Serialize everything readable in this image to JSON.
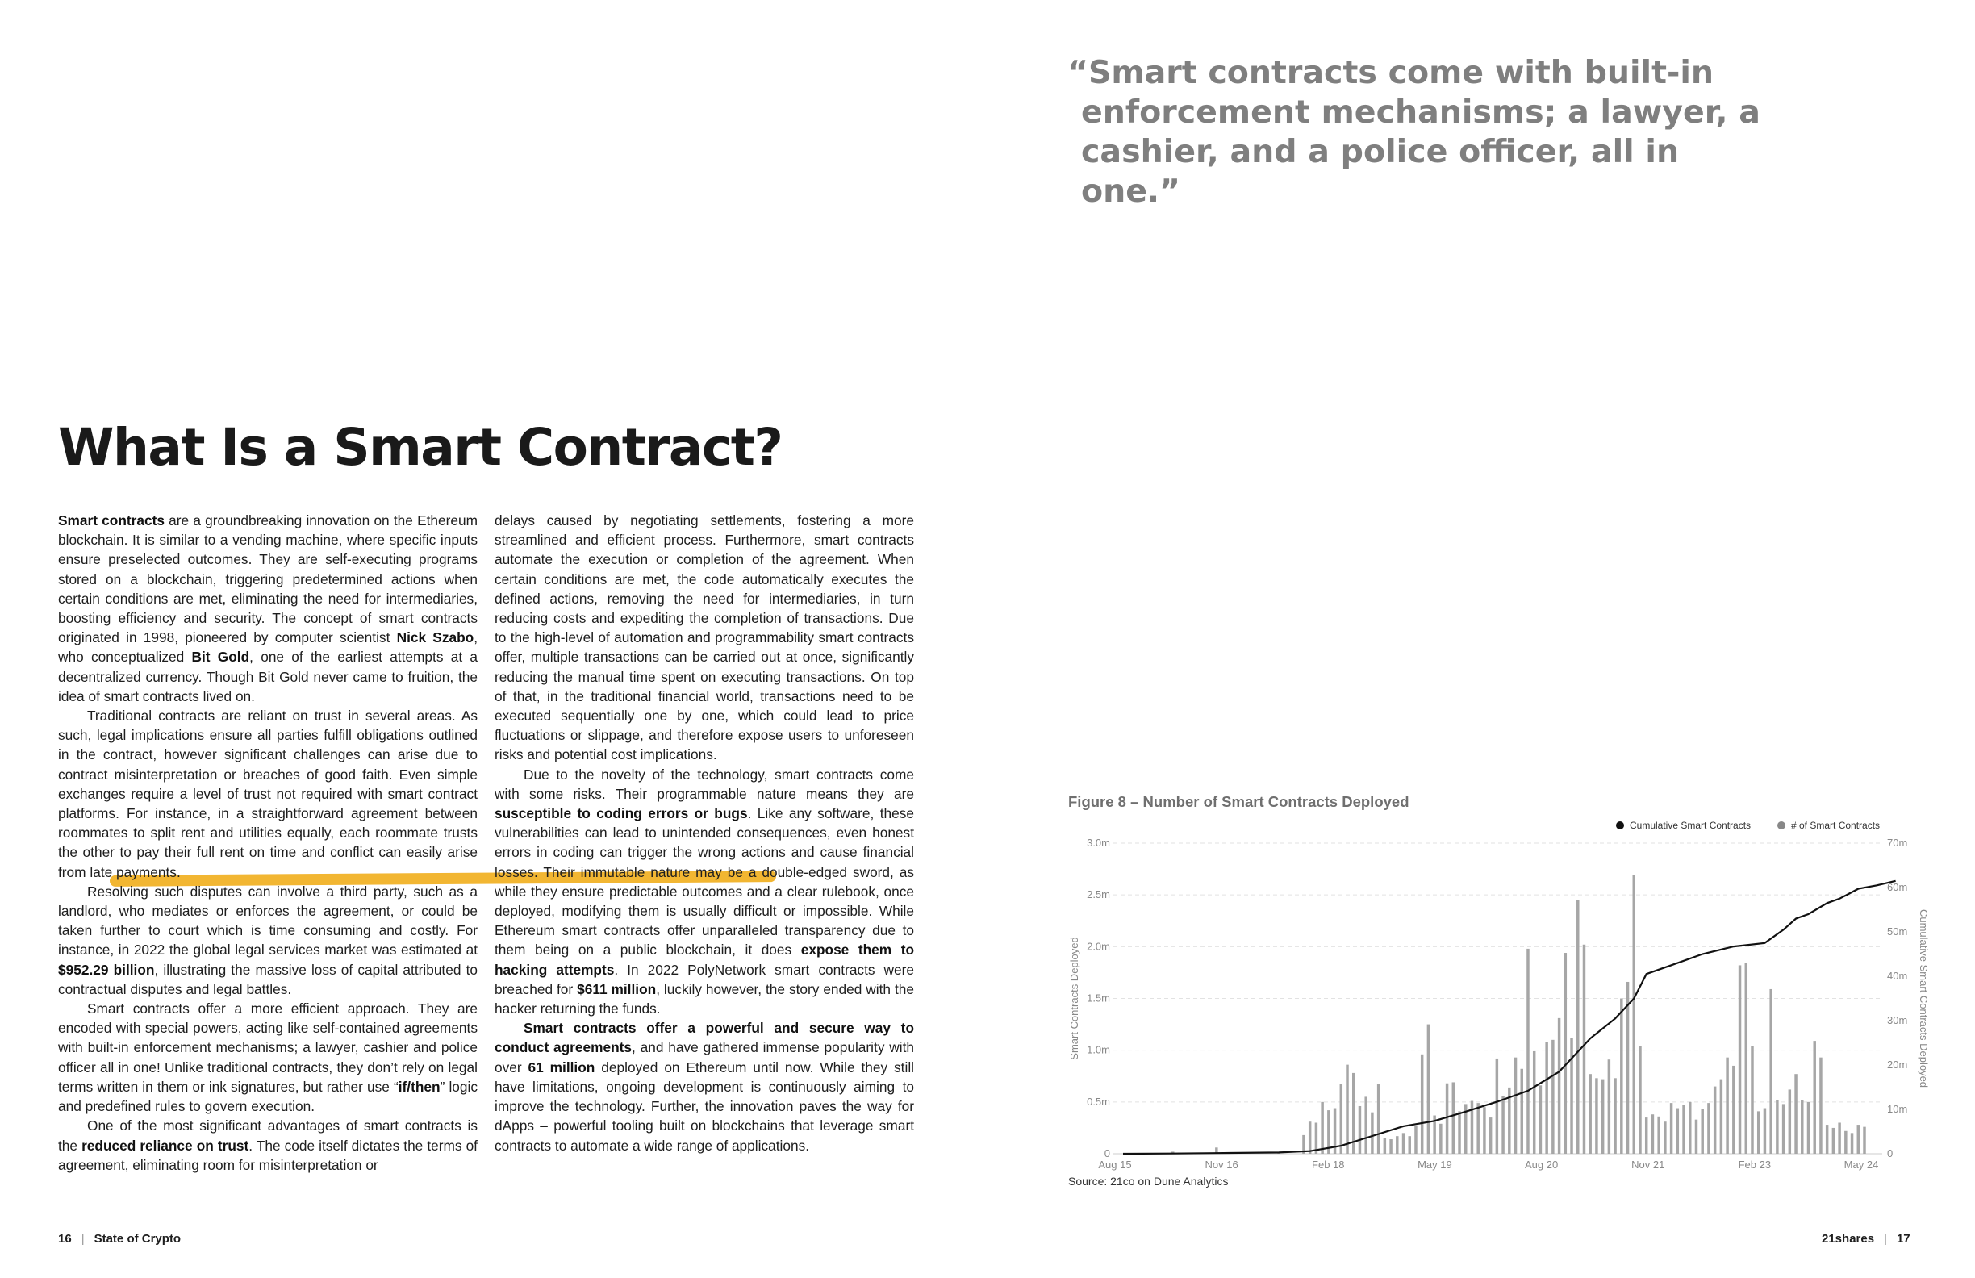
{
  "left_page": {
    "title": "What Is a Smart Contract?",
    "column1": [
      {
        "indent": false,
        "runs": [
          {
            "b": true,
            "t": "Smart contracts"
          },
          {
            "t": " are a groundbreaking innovation on the Ethereum blockchain. It is similar to a vending machine, where specific inputs ensure preselected outcomes. They are self-executing programs stored on a blockchain, triggering predetermined actions when certain conditions are met, eliminating the need for intermediaries, boosting efficiency and security. The concept of smart contracts originated in 1998, pioneered by computer scientist "
          },
          {
            "b": true,
            "t": "Nick Szabo"
          },
          {
            "t": ", who conceptualized "
          },
          {
            "b": true,
            "t": "Bit Gold"
          },
          {
            "t": ", one of the earliest attempts at a decentralized currency. Though Bit Gold never came to fruition, the idea of smart contracts lived on."
          }
        ]
      },
      {
        "indent": true,
        "runs": [
          {
            "t": "Traditional contracts are reliant on trust in several areas. As such, legal implications ensure all parties fulfill obligations outlined in the contract, however significant challenges can arise due to contract misinterpretation or breaches of good faith. Even simple exchanges require a level of trust not required with smart contract platforms. For instance, in a straightforward agreement between roommates to split rent and utilities equally, each roommate trusts the other to pay their full rent on time and conflict can easily arise from late payments."
          }
        ]
      },
      {
        "indent": true,
        "runs": [
          {
            "t": "Resolving such disputes can involve a third party, such as a landlord, who mediates or enforces the agreement, or could be taken further to court which is time consuming and costly. For instance, in 2022 the global legal services market was estimated at "
          },
          {
            "b": true,
            "t": "$952.29 billion"
          },
          {
            "t": ", illustrating the massive loss of capital attributed to contractual disputes and legal battles."
          }
        ]
      },
      {
        "indent": true,
        "runs": [
          {
            "t": "Smart contracts offer a more efficient approach. They are encoded with special powers, acting like self-contained agreements with built-in enforcement mechanisms; a lawyer, cashier and police officer all in one! Unlike traditional contracts, they don’t rely on legal terms written in them or ink signatures, but rather use “"
          },
          {
            "b": true,
            "t": "if/then"
          },
          {
            "t": "” logic and predefined rules to govern execution."
          }
        ]
      },
      {
        "indent": true,
        "runs": [
          {
            "t": "One of the most significant advantages of smart contracts is the "
          },
          {
            "b": true,
            "t": "reduced reliance on trust"
          },
          {
            "t": ". The code itself dictates the terms of agreement, eliminating room for misinterpretation or"
          }
        ]
      }
    ],
    "column2": [
      {
        "indent": false,
        "runs": [
          {
            "t": "delays caused by negotiating settlements, fostering a more streamlined and efficient process. Furthermore, smart contracts automate the execution or completion of the agreement. When certain conditions are met, the code automatically executes the defined actions, removing the need for intermediaries, in turn reducing costs and expediting the completion of transactions. Due to the high-level of automation and programmability smart contracts offer, multiple transactions can be carried out at once, significantly reducing the manual time spent on executing transactions. On top of that, in the traditional financial world, transactions need to be executed sequentially one by one, which could lead to price fluctuations or slippage, and therefore expose users to unforeseen risks and potential cost implications."
          }
        ]
      },
      {
        "indent": true,
        "runs": [
          {
            "t": "Due to the novelty of the technology, smart contracts come with some risks. Their programmable nature means they are "
          },
          {
            "b": true,
            "t": "susceptible to coding errors or bugs"
          },
          {
            "t": ". Like any software, these vulnerabilities can lead to unintended consequences, even honest errors in coding can trigger the wrong actions and cause financial losses. Their immutable nature may be a double-edged sword, as while they ensure predictable outcomes and a clear rulebook, once deployed, modifying them is usually difficult or impossible. While Ethereum smart contracts offer unparalleled transparency due to them being on a public blockchain, it does "
          },
          {
            "b": true,
            "t": "expose them to hacking attempts"
          },
          {
            "t": ". In 2022 PolyNetwork smart contracts were breached for "
          },
          {
            "b": true,
            "t": "$611 million"
          },
          {
            "t": ", luckily however, the story ended with the hacker returning the funds."
          }
        ]
      },
      {
        "indent": true,
        "runs": [
          {
            "b": true,
            "t": "Smart contracts offer a powerful and secure way to conduct agreements"
          },
          {
            "t": ", and have gathered immense popularity with over "
          },
          {
            "b": true,
            "t": "61 million"
          },
          {
            "t": " deployed on Ethereum until now. While they still have limitations, ongoing development is continuously aiming to improve the technology. Further, the innovation paves the way for dApps – powerful tooling built on blockchains that leverage smart contracts to automate a wide range of applications."
          }
        ]
      }
    ],
    "footer": {
      "page_number": "16",
      "separator": "|",
      "publication": "State of Crypto"
    }
  },
  "right_page": {
    "quote": "“Smart contracts come with built-in enforcement mechanisms; a lawyer, a cashier, and a police officer, all in one.”",
    "figure_title": "Figure 8 – Number of Smart Contracts Deployed",
    "source": "Source: 21co on Dune Analytics",
    "footer": {
      "brand": "21shares",
      "separator": "|",
      "page_number": "17"
    }
  },
  "chart_data": {
    "type": "bar+line",
    "title": "Figure 8 – Number of Smart Contracts Deployed",
    "categories_ticks": [
      "Aug 15",
      "Nov 16",
      "Feb 18",
      "May 19",
      "Aug 20",
      "Nov 21",
      "Feb 23",
      "May 24"
    ],
    "ylabel": "Smart Contracts Deployed",
    "y2label": "Cumulative Smart Contracts Deployed",
    "ylim": [
      0,
      3.0
    ],
    "y_ticks": [
      "0",
      "0.5m",
      "1.0m",
      "1.5m",
      "2.0m",
      "2.5m",
      "3.0m"
    ],
    "y2lim": [
      0,
      70
    ],
    "y2_ticks": [
      "0",
      "10m",
      "20m",
      "30m",
      "40m",
      "50m",
      "60m",
      "70m"
    ],
    "legend_position": "top-right",
    "grid": true,
    "colors": {
      "bars": "#a6a6a6",
      "line": "#111111"
    },
    "series": [
      {
        "name": "# of Smart Contracts",
        "kind": "bar",
        "unit": "millions",
        "values": [
          0,
          0,
          0,
          0,
          0,
          0,
          0,
          0,
          0.02,
          0.01,
          0.01,
          0,
          0,
          0.01,
          0,
          0.06,
          0,
          0,
          0,
          0,
          0,
          0,
          0,
          0,
          0,
          0.01,
          0,
          0,
          0,
          0.18,
          0.31,
          0.3,
          0.5,
          0.42,
          0.44,
          0.67,
          0.86,
          0.78,
          0.46,
          0.55,
          0.4,
          0.67,
          0.15,
          0.14,
          0.17,
          0.2,
          0.17,
          0.27,
          0.96,
          1.25,
          0.37,
          0.29,
          0.68,
          0.69,
          0.41,
          0.48,
          0.51,
          0.49,
          0.45,
          0.35,
          0.92,
          0.56,
          0.64,
          0.93,
          0.82,
          1.98,
          0.99,
          0.66,
          1.08,
          1.1,
          1.31,
          1.94,
          1.12,
          2.45,
          2.02,
          0.77,
          0.73,
          0.72,
          0.91,
          0.73,
          1.5,
          1.66,
          2.69,
          1.04,
          0.35,
          0.38,
          0.36,
          0.31,
          0.49,
          0.44,
          0.47,
          0.5,
          0.33,
          0.43,
          0.49,
          0.65,
          0.72,
          0.93,
          0.85,
          1.82,
          1.84,
          1.04,
          0.41,
          0.44,
          1.59,
          0.52,
          0.48,
          0.62,
          0.77,
          0.52,
          0.5,
          1.09,
          0.93,
          0.28,
          0.25,
          0.3,
          0.22,
          0.2,
          0.28,
          0.26
        ]
      },
      {
        "name": "Cumulative Smart Contracts",
        "kind": "line",
        "unit": "millions",
        "points": [
          [
            0,
            0
          ],
          [
            8,
            0.05
          ],
          [
            15,
            0.15
          ],
          [
            25,
            0.3
          ],
          [
            30,
            0.6
          ],
          [
            35,
            1.8
          ],
          [
            40,
            4.0
          ],
          [
            45,
            6.2
          ],
          [
            50,
            7.4
          ],
          [
            55,
            9.5
          ],
          [
            60,
            11.7
          ],
          [
            65,
            14.2
          ],
          [
            70,
            18.5
          ],
          [
            75,
            26.0
          ],
          [
            79,
            30.5
          ],
          [
            82,
            35.0
          ],
          [
            84,
            40.5
          ],
          [
            88,
            42.5
          ],
          [
            93,
            45.0
          ],
          [
            98,
            46.7
          ],
          [
            103,
            47.5
          ],
          [
            106,
            50.5
          ],
          [
            108,
            53.0
          ],
          [
            110,
            54.0
          ],
          [
            113,
            56.5
          ],
          [
            115,
            57.5
          ],
          [
            118,
            59.7
          ],
          [
            121,
            60.5
          ],
          [
            124,
            61.5
          ]
        ]
      }
    ]
  }
}
